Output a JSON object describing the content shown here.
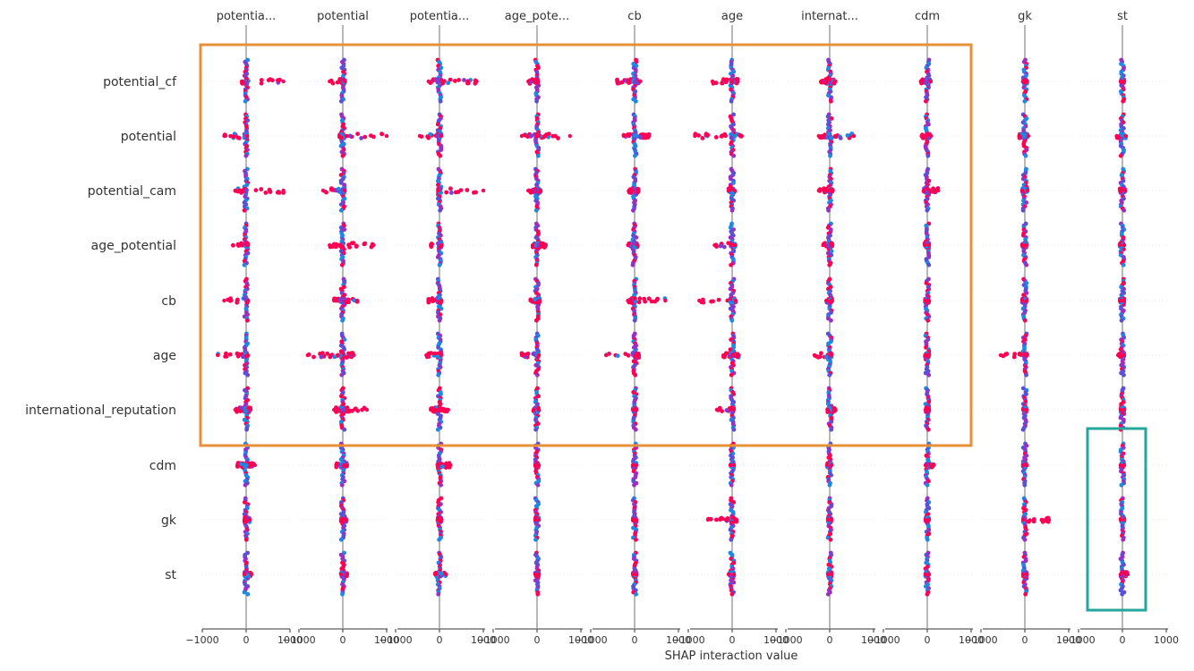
{
  "chart_data": {
    "type": "scatter",
    "title": "",
    "xlabel": "SHAP interaction value",
    "xlim": [
      -1000,
      1000
    ],
    "x_tick_labels": [
      "−1000",
      "0",
      "1000"
    ],
    "column_labels": [
      "potentia...",
      "potential",
      "potentia...",
      "age_pote...",
      "cb",
      "age",
      "internat...",
      "cdm",
      "gk",
      "st"
    ],
    "row_labels": [
      "potential_cf",
      "potential",
      "potential_cam",
      "age_potential",
      "cb",
      "age",
      "international_reputation",
      "cdm",
      "gk",
      "st"
    ],
    "row_columns_meaning": "beeswarm of SHAP interaction values for each feature pair (row × column)",
    "feature_color_scale": {
      "low": "#1e88e5",
      "high": "#ff0052"
    },
    "spread": [
      [
        [
          -100,
          850
        ],
        [
          -300,
          50
        ],
        [
          -250,
          850
        ],
        [
          -200,
          20
        ],
        [
          -400,
          130
        ],
        [
          -450,
          130
        ],
        [
          -200,
          130
        ],
        [
          -150,
          80
        ],
        [
          -40,
          50
        ],
        [
          -40,
          40
        ]
      ],
      [
        [
          -500,
          20
        ],
        [
          -80,
          1000
        ],
        [
          -450,
          40
        ],
        [
          -350,
          750
        ],
        [
          -250,
          330
        ],
        [
          -850,
          220
        ],
        [
          -250,
          550
        ],
        [
          -130,
          90
        ],
        [
          -130,
          80
        ],
        [
          -130,
          80
        ]
      ],
      [
        [
          -250,
          850
        ],
        [
          -450,
          40
        ],
        [
          -30,
          1000
        ],
        [
          -200,
          80
        ],
        [
          -130,
          90
        ],
        [
          -80,
          60
        ],
        [
          -250,
          70
        ],
        [
          -80,
          250
        ],
        [
          -60,
          60
        ],
        [
          -60,
          60
        ]
      ],
      [
        [
          -300,
          40
        ],
        [
          -300,
          700
        ],
        [
          -200,
          50
        ],
        [
          -100,
          200
        ],
        [
          -150,
          70
        ],
        [
          -400,
          70
        ],
        [
          -150,
          60
        ],
        [
          -60,
          40
        ],
        [
          -60,
          40
        ],
        [
          -60,
          40
        ]
      ],
      [
        [
          -500,
          40
        ],
        [
          -200,
          330
        ],
        [
          -250,
          40
        ],
        [
          -150,
          60
        ],
        [
          -150,
          700
        ],
        [
          -750,
          80
        ],
        [
          -80,
          60
        ],
        [
          -50,
          40
        ],
        [
          -60,
          40
        ],
        [
          -60,
          40
        ]
      ],
      [
        [
          -650,
          40
        ],
        [
          -800,
          250
        ],
        [
          -300,
          40
        ],
        [
          -350,
          40
        ],
        [
          -650,
          100
        ],
        [
          -200,
          150
        ],
        [
          -350,
          40
        ],
        [
          -50,
          40
        ],
        [
          -550,
          50
        ],
        [
          -100,
          40
        ]
      ],
      [
        [
          -250,
          100
        ],
        [
          -200,
          550
        ],
        [
          -200,
          200
        ],
        [
          -80,
          40
        ],
        [
          -40,
          40
        ],
        [
          -350,
          40
        ],
        [
          -50,
          130
        ],
        [
          -40,
          40
        ],
        [
          -40,
          40
        ],
        [
          -40,
          40
        ]
      ],
      [
        [
          -200,
          200
        ],
        [
          -150,
          100
        ],
        [
          -40,
          250
        ],
        [
          -40,
          40
        ],
        [
          -40,
          40
        ],
        [
          -40,
          40
        ],
        [
          -60,
          40
        ],
        [
          -40,
          150
        ],
        [
          -40,
          40
        ],
        [
          -40,
          40
        ]
      ],
      [
        [
          -40,
          80
        ],
        [
          -40,
          80
        ],
        [
          -40,
          40
        ],
        [
          -40,
          40
        ],
        [
          -40,
          40
        ],
        [
          -550,
          100
        ],
        [
          -40,
          40
        ],
        [
          -40,
          40
        ],
        [
          -40,
          550
        ],
        [
          -40,
          40
        ]
      ],
      [
        [
          -40,
          120
        ],
        [
          -40,
          100
        ],
        [
          -100,
          150
        ],
        [
          -40,
          40
        ],
        [
          -40,
          40
        ],
        [
          -80,
          40
        ],
        [
          -40,
          40
        ],
        [
          -40,
          40
        ],
        [
          -40,
          40
        ],
        [
          -40,
          120
        ]
      ]
    ],
    "highlights": [
      {
        "color": "#e69138",
        "rows": [
          0,
          6
        ],
        "cols": [
          0,
          7
        ]
      },
      {
        "color": "#26a69a",
        "rows": [
          7,
          9
        ],
        "cols": [
          9,
          9
        ]
      }
    ]
  }
}
